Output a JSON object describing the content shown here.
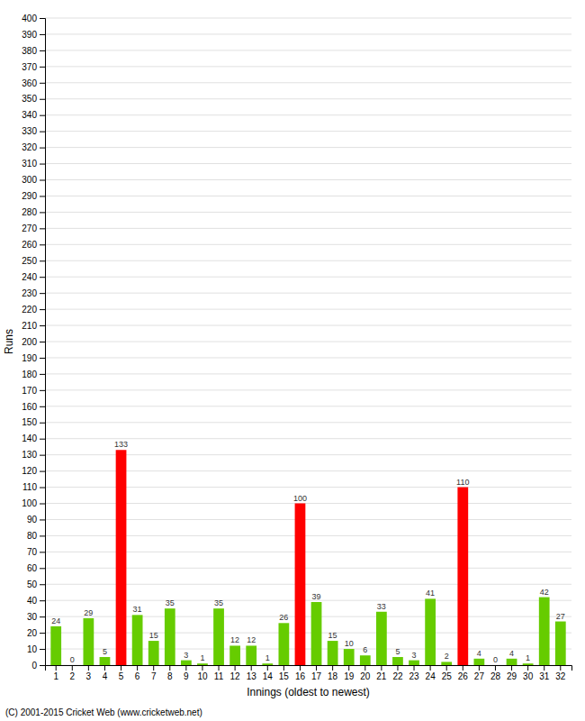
{
  "chart_data": {
    "type": "bar",
    "xlabel": "Innings (oldest to newest)",
    "ylabel": "Runs",
    "categories": [
      "1",
      "2",
      "3",
      "4",
      "5",
      "6",
      "7",
      "8",
      "9",
      "10",
      "11",
      "12",
      "13",
      "14",
      "15",
      "16",
      "17",
      "18",
      "19",
      "20",
      "21",
      "22",
      "23",
      "24",
      "25",
      "26",
      "27",
      "28",
      "29",
      "30",
      "31",
      "32"
    ],
    "values": [
      24,
      0,
      29,
      5,
      133,
      31,
      15,
      35,
      3,
      1,
      35,
      12,
      12,
      1,
      26,
      100,
      39,
      15,
      10,
      6,
      33,
      5,
      3,
      41,
      2,
      110,
      4,
      0,
      4,
      1,
      42,
      27
    ],
    "colors": [
      "#66cc00",
      "#66cc00",
      "#66cc00",
      "#66cc00",
      "#ff0000",
      "#66cc00",
      "#66cc00",
      "#66cc00",
      "#66cc00",
      "#66cc00",
      "#66cc00",
      "#66cc00",
      "#66cc00",
      "#66cc00",
      "#66cc00",
      "#ff0000",
      "#66cc00",
      "#66cc00",
      "#66cc00",
      "#66cc00",
      "#66cc00",
      "#66cc00",
      "#66cc00",
      "#66cc00",
      "#66cc00",
      "#ff0000",
      "#66cc00",
      "#66cc00",
      "#66cc00",
      "#66cc00",
      "#66cc00",
      "#66cc00"
    ],
    "ylim": [
      0,
      400
    ],
    "yticks": [
      0,
      10,
      20,
      30,
      40,
      50,
      60,
      70,
      80,
      90,
      100,
      110,
      120,
      130,
      140,
      150,
      160,
      170,
      180,
      190,
      200,
      210,
      220,
      230,
      240,
      250,
      260,
      270,
      280,
      290,
      300,
      310,
      320,
      330,
      340,
      350,
      360,
      370,
      380,
      390,
      400
    ],
    "grid": true,
    "data_labels": true,
    "annotations": [
      "(C) 2001-2015 Cricket Web (www.cricketweb.net)"
    ]
  }
}
